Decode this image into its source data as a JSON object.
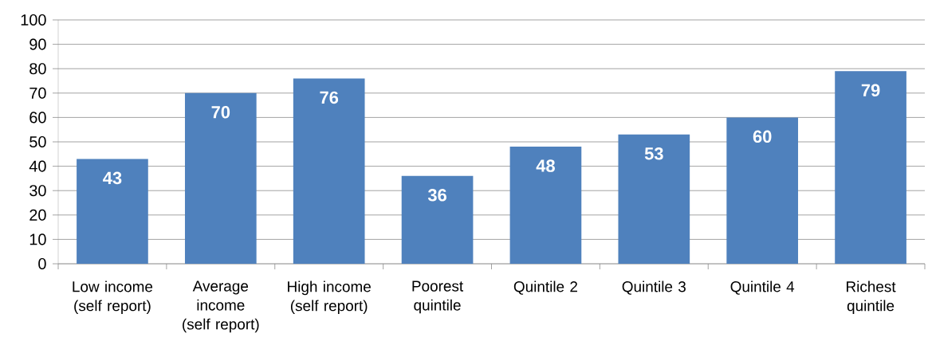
{
  "chart_data": {
    "type": "bar",
    "categories": [
      "Low income (self report)",
      "Average income (self report)",
      "High income (self report)",
      "Poorest quintile",
      "Quintile 2",
      "Quintile 3",
      "Quintile 4",
      "Richest quintile"
    ],
    "values": [
      43,
      70,
      76,
      36,
      48,
      53,
      60,
      79
    ],
    "color": "#4f81bd",
    "ylim": [
      0,
      100
    ],
    "yticks": [
      0,
      10,
      20,
      30,
      40,
      50,
      60,
      70,
      80,
      90,
      100
    ],
    "grid": "y",
    "data_labels": true
  }
}
